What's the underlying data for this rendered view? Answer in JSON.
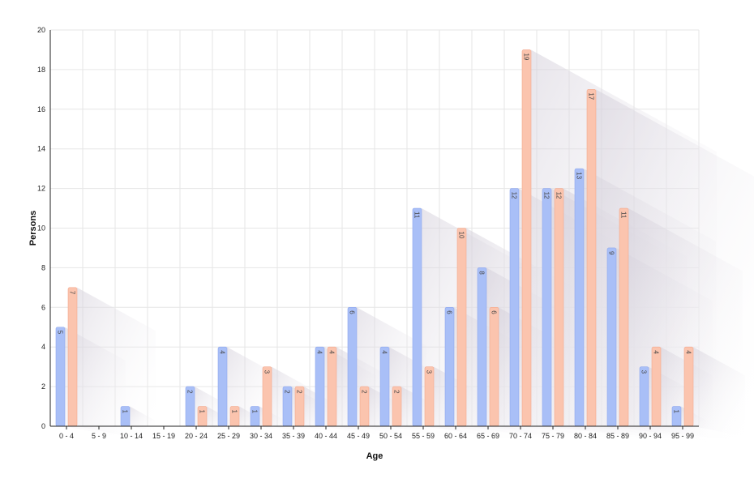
{
  "chart_data": {
    "type": "bar",
    "xlabel": "Age",
    "ylabel": "Persons",
    "ylim": [
      0,
      20
    ],
    "yticks": [
      0,
      2,
      4,
      6,
      8,
      10,
      12,
      14,
      16,
      18,
      20
    ],
    "grid": true,
    "legend": "none",
    "categories": [
      "0 - 4",
      "5 - 9",
      "10 - 14",
      "15 - 19",
      "20 - 24",
      "25 - 29",
      "30 - 34",
      "35 - 39",
      "40 - 44",
      "45 - 49",
      "50 - 54",
      "55 - 59",
      "60 - 64",
      "65 - 69",
      "70 - 74",
      "75 - 79",
      "80 - 84",
      "85 - 89",
      "90 - 94",
      "95 - 99"
    ],
    "series": [
      {
        "color": "#a9bff7",
        "values": [
          5,
          0,
          1,
          0,
          2,
          4,
          1,
          2,
          4,
          6,
          4,
          11,
          6,
          8,
          12,
          12,
          13,
          9,
          3,
          1
        ]
      },
      {
        "color": "#fbc4ae",
        "values": [
          7,
          0,
          0,
          0,
          1,
          1,
          3,
          2,
          4,
          2,
          2,
          3,
          10,
          6,
          19,
          12,
          17,
          11,
          4,
          4
        ]
      }
    ]
  }
}
